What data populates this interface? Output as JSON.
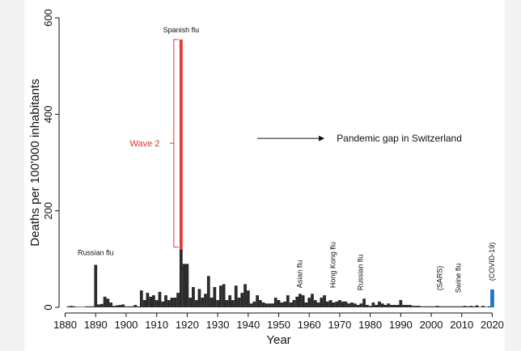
{
  "chart_data": {
    "type": "bar",
    "xlabel": "Year",
    "ylabel": "Deaths per 100'000 inhabitants",
    "xlim": [
      1878,
      2022
    ],
    "ylim": [
      0,
      600
    ],
    "x_ticks": [
      1880,
      1890,
      1900,
      1910,
      1920,
      1930,
      1940,
      1950,
      1960,
      1970,
      1980,
      1990,
      2000,
      2010,
      2020
    ],
    "y_ticks": [
      0,
      200,
      400,
      600
    ],
    "colors": {
      "bars": "#2b2b2b",
      "spanish_flu": "#e03a35",
      "covid": "#1f77c8",
      "wave_label": "#d6322e"
    },
    "series": [
      {
        "x": [
          1881,
          1882,
          1883,
          1884,
          1885,
          1886,
          1887,
          1888,
          1889,
          1890,
          1891,
          1892,
          1893,
          1894,
          1895,
          1896,
          1897,
          1898,
          1899,
          1900,
          1901,
          1902,
          1903,
          1904,
          1905,
          1906,
          1907,
          1908,
          1909,
          1910,
          1911,
          1912,
          1913,
          1914,
          1915,
          1916,
          1917,
          1918,
          1919,
          1920,
          1921,
          1922,
          1923,
          1924,
          1925,
          1926,
          1927,
          1928,
          1929,
          1930,
          1931,
          1932,
          1933,
          1934,
          1935,
          1936,
          1937,
          1938,
          1939,
          1940,
          1941,
          1942,
          1943,
          1944,
          1945,
          1946,
          1947,
          1948,
          1949,
          1950,
          1951,
          1952,
          1953,
          1954,
          1955,
          1956,
          1957,
          1958,
          1959,
          1960,
          1961,
          1962,
          1963,
          1964,
          1965,
          1966,
          1967,
          1968,
          1969,
          1970,
          1971,
          1972,
          1973,
          1974,
          1975,
          1976,
          1977,
          1978,
          1979,
          1980,
          1981,
          1982,
          1983,
          1984,
          1985,
          1986,
          1987,
          1988,
          1989,
          1990,
          1991,
          1992,
          1993,
          1994,
          1995,
          1996,
          1997,
          1998,
          1999,
          2000,
          2001,
          2002,
          2003,
          2004,
          2005,
          2006,
          2007,
          2008,
          2009,
          2010,
          2011,
          2012,
          2013,
          2014,
          2015,
          2016,
          2017,
          2018,
          2019
        ],
        "values": [
          2,
          3,
          2,
          1,
          1,
          1,
          2,
          2,
          2,
          88,
          6,
          7,
          22,
          18,
          10,
          3,
          4,
          5,
          6,
          2,
          2,
          2,
          5,
          2,
          35,
          15,
          30,
          22,
          25,
          15,
          32,
          12,
          25,
          15,
          20,
          20,
          30,
          555,
          90,
          90,
          20,
          42,
          15,
          38,
          20,
          28,
          65,
          20,
          42,
          15,
          45,
          48,
          15,
          25,
          15,
          45,
          20,
          30,
          48,
          35,
          8,
          12,
          25,
          15,
          10,
          8,
          8,
          8,
          20,
          15,
          10,
          12,
          25,
          10,
          15,
          22,
          28,
          25,
          10,
          20,
          28,
          15,
          10,
          20,
          25,
          12,
          15,
          10,
          12,
          15,
          12,
          12,
          8,
          10,
          8,
          5,
          8,
          18,
          5,
          3,
          10,
          5,
          12,
          8,
          5,
          8,
          5,
          5,
          5,
          15,
          5,
          5,
          5,
          3,
          3,
          3,
          2,
          2,
          2,
          2,
          2,
          3,
          2,
          2,
          2,
          2,
          2,
          2,
          2,
          2,
          3,
          2,
          3,
          2,
          4,
          1,
          3,
          1,
          2
        ]
      },
      {
        "name": "(COVID-19)",
        "x": [
          2020
        ],
        "values": [
          37
        ]
      }
    ],
    "highlight": {
      "year": 1918,
      "split_value": 120,
      "label": "Wave 2"
    },
    "annotations": [
      {
        "text": "Russian flu",
        "x": 1890,
        "y": 108,
        "orientation": "horizontal"
      },
      {
        "text": "Spanish flu",
        "x": 1918,
        "y": 570,
        "orientation": "horizontal"
      },
      {
        "text": "Wave 2",
        "x": 1911,
        "y": 340,
        "orientation": "horizontal"
      },
      {
        "text": "Pandemic gap in Switzerland",
        "x": 1969,
        "y": 350,
        "orientation": "horizontal"
      },
      {
        "text": "Asian flu",
        "x": 1957,
        "y": 40,
        "orientation": "vertical"
      },
      {
        "text": "Hong Kong flu",
        "x": 1968,
        "y": 40,
        "orientation": "vertical"
      },
      {
        "text": "Russian flu",
        "x": 1977,
        "y": 35,
        "orientation": "vertical"
      },
      {
        "text": "(SARS)",
        "x": 2003,
        "y": 35,
        "orientation": "vertical"
      },
      {
        "text": "Swine flu",
        "x": 2009,
        "y": 30,
        "orientation": "vertical"
      },
      {
        "text": "(COVID-19)",
        "x": 2020,
        "y": 55,
        "orientation": "vertical"
      }
    ],
    "arrow": {
      "from_x": 1943,
      "to_x": 1965,
      "y": 350
    },
    "grid": false,
    "legend": "none"
  }
}
